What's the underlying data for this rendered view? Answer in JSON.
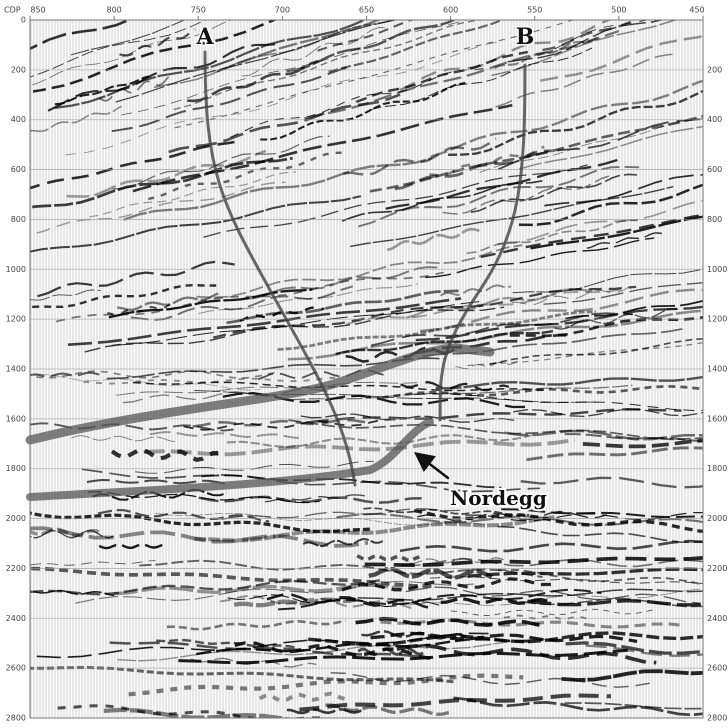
{
  "top_axis": {
    "label": "CDP",
    "ticks": [
      850,
      800,
      750,
      700,
      650,
      600,
      550,
      500,
      450
    ]
  },
  "left_axis": {
    "ticks": [
      0,
      200,
      400,
      600,
      800,
      1000,
      1200,
      1400,
      1600,
      1800,
      2000,
      2200,
      2400,
      2600,
      2800
    ]
  },
  "right_axis": {
    "ticks": [
      200,
      400,
      600,
      800,
      1000,
      1200,
      1400,
      1600,
      1800,
      2000,
      2200,
      2400,
      2600,
      2800
    ]
  },
  "annotations": {
    "wells": [
      "A",
      "B"
    ],
    "horizon": "Nordegg"
  }
}
